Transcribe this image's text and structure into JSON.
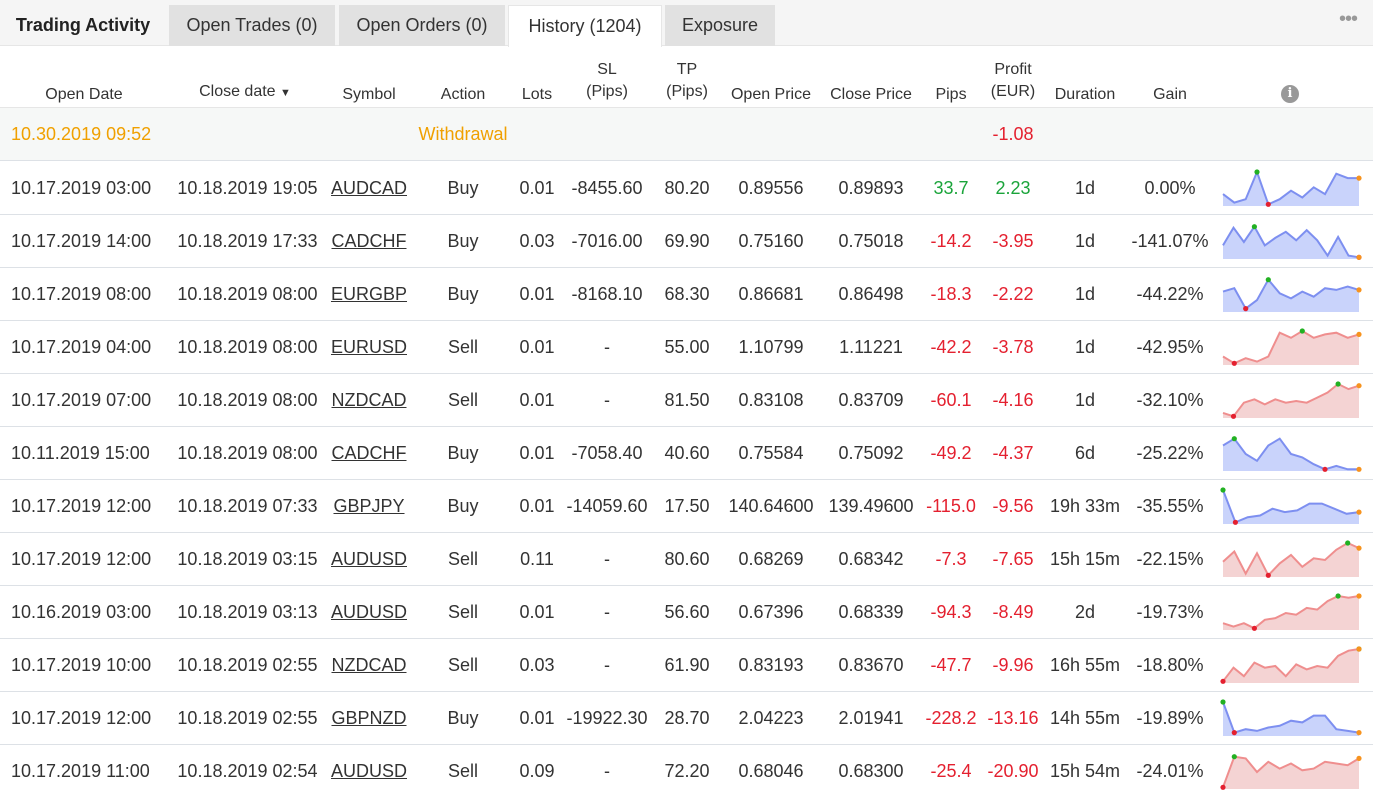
{
  "tabs": [
    {
      "label": "Trading Activity"
    },
    {
      "label": "Open Trades (0)"
    },
    {
      "label": "Open Orders (0)"
    },
    {
      "label": "History (1204)"
    },
    {
      "label": "Exposure"
    }
  ],
  "more_label": "•••",
  "columns": {
    "open_date": "Open Date",
    "close_date": "Close date",
    "sort_indicator": "▼",
    "symbol": "Symbol",
    "action": "Action",
    "lots": "Lots",
    "sl_1": "SL",
    "sl_2": "(Pips)",
    "tp_1": "TP",
    "tp_2": "(Pips)",
    "open_price": "Open Price",
    "close_price": "Close Price",
    "pips": "Pips",
    "profit_1": "Profit",
    "profit_2": "(EUR)",
    "duration": "Duration",
    "gain": "Gain",
    "info_icon": "i"
  },
  "withdrawal": {
    "open_date": "10.30.2019 09:52",
    "action": "Withdrawal",
    "profit": "-1.08"
  },
  "rows": [
    {
      "open_date": "10.17.2019 03:00",
      "close_date": "10.18.2019 19:05",
      "symbol": "AUDCAD",
      "action": "Buy",
      "lots": "0.01",
      "sl": "-8455.60",
      "tp": "80.20",
      "open_price": "0.89556",
      "close_price": "0.89893",
      "pips": "33.7",
      "profit": "2.23",
      "duration": "1d",
      "gain": "0.00%",
      "positive": true,
      "spark": {
        "color": "blue",
        "values": [
          0.35,
          0.1,
          0.2,
          1.0,
          0.05,
          0.2,
          0.45,
          0.25,
          0.55,
          0.35,
          0.95,
          0.82,
          0.82
        ]
      }
    },
    {
      "open_date": "10.17.2019 14:00",
      "close_date": "10.18.2019 17:33",
      "symbol": "CADCHF",
      "action": "Buy",
      "lots": "0.03",
      "sl": "-7016.00",
      "tp": "69.90",
      "open_price": "0.75160",
      "close_price": "0.75018",
      "pips": "-14.2",
      "profit": "-3.95",
      "duration": "1d",
      "gain": "-141.07%",
      "positive": false,
      "spark": {
        "color": "blue",
        "values": [
          0.4,
          0.92,
          0.5,
          0.95,
          0.4,
          0.62,
          0.8,
          0.55,
          0.85,
          0.55,
          0.1,
          0.65,
          0.1,
          0.05
        ]
      }
    },
    {
      "open_date": "10.17.2019 08:00",
      "close_date": "10.18.2019 08:00",
      "symbol": "EURGBP",
      "action": "Buy",
      "lots": "0.01",
      "sl": "-8168.10",
      "tp": "68.30",
      "open_price": "0.86681",
      "close_price": "0.86498",
      "pips": "-18.3",
      "profit": "-2.22",
      "duration": "1d",
      "gain": "-44.22%",
      "positive": false,
      "spark": {
        "color": "blue",
        "values": [
          0.6,
          0.7,
          0.1,
          0.35,
          0.95,
          0.55,
          0.4,
          0.6,
          0.45,
          0.7,
          0.65,
          0.75,
          0.65
        ]
      }
    },
    {
      "open_date": "10.17.2019 04:00",
      "close_date": "10.18.2019 08:00",
      "symbol": "EURUSD",
      "action": "Sell",
      "lots": "0.01",
      "sl": "-",
      "tp": "55.00",
      "open_price": "1.10799",
      "close_price": "1.11221",
      "pips": "-42.2",
      "profit": "-3.78",
      "duration": "1d",
      "gain": "-42.95%",
      "positive": false,
      "spark": {
        "color": "red",
        "values": [
          0.25,
          0.05,
          0.2,
          0.1,
          0.25,
          0.95,
          0.8,
          1.0,
          0.8,
          0.9,
          0.95,
          0.8,
          0.9
        ]
      }
    },
    {
      "open_date": "10.17.2019 07:00",
      "close_date": "10.18.2019 08:00",
      "symbol": "NZDCAD",
      "action": "Sell",
      "lots": "0.01",
      "sl": "-",
      "tp": "81.50",
      "open_price": "0.83108",
      "close_price": "0.83709",
      "pips": "-60.1",
      "profit": "-4.16",
      "duration": "1d",
      "gain": "-32.10%",
      "positive": false,
      "spark": {
        "color": "red",
        "values": [
          0.15,
          0.05,
          0.45,
          0.55,
          0.4,
          0.55,
          0.45,
          0.5,
          0.45,
          0.6,
          0.75,
          1.0,
          0.85,
          0.95
        ]
      }
    },
    {
      "open_date": "10.11.2019 15:00",
      "close_date": "10.18.2019 08:00",
      "symbol": "CADCHF",
      "action": "Buy",
      "lots": "0.01",
      "sl": "-7058.40",
      "tp": "40.60",
      "open_price": "0.75584",
      "close_price": "0.75092",
      "pips": "-49.2",
      "profit": "-4.37",
      "duration": "6d",
      "gain": "-25.22%",
      "positive": false,
      "spark": {
        "color": "blue",
        "values": [
          0.75,
          0.95,
          0.5,
          0.3,
          0.75,
          0.95,
          0.5,
          0.4,
          0.2,
          0.05,
          0.15,
          0.05,
          0.05
        ]
      }
    },
    {
      "open_date": "10.17.2019 12:00",
      "close_date": "10.18.2019 07:33",
      "symbol": "GBPJPY",
      "action": "Buy",
      "lots": "0.01",
      "sl": "-14059.60",
      "tp": "17.50",
      "open_price": "140.64600",
      "close_price": "139.49600",
      "pips": "-115.0",
      "profit": "-9.56",
      "duration": "19h 33m",
      "gain": "-35.55%",
      "positive": false,
      "spark": {
        "color": "blue",
        "values": [
          1.0,
          0.05,
          0.2,
          0.25,
          0.45,
          0.35,
          0.4,
          0.6,
          0.6,
          0.45,
          0.3,
          0.35
        ]
      }
    },
    {
      "open_date": "10.17.2019 12:00",
      "close_date": "10.18.2019 03:15",
      "symbol": "AUDUSD",
      "action": "Sell",
      "lots": "0.11",
      "sl": "-",
      "tp": "80.60",
      "open_price": "0.68269",
      "close_price": "0.68342",
      "pips": "-7.3",
      "profit": "-7.65",
      "duration": "15h 15m",
      "gain": "-22.15%",
      "positive": false,
      "spark": {
        "color": "red",
        "values": [
          0.45,
          0.75,
          0.1,
          0.7,
          0.05,
          0.4,
          0.65,
          0.3,
          0.55,
          0.5,
          0.8,
          1.0,
          0.85
        ]
      }
    },
    {
      "open_date": "10.16.2019 03:00",
      "close_date": "10.18.2019 03:13",
      "symbol": "AUDUSD",
      "action": "Sell",
      "lots": "0.01",
      "sl": "-",
      "tp": "56.60",
      "open_price": "0.67396",
      "close_price": "0.68339",
      "pips": "-94.3",
      "profit": "-8.49",
      "duration": "2d",
      "gain": "-19.73%",
      "positive": false,
      "spark": {
        "color": "red",
        "values": [
          0.2,
          0.1,
          0.2,
          0.05,
          0.3,
          0.35,
          0.5,
          0.45,
          0.65,
          0.6,
          0.85,
          1.0,
          0.95,
          1.0
        ]
      }
    },
    {
      "open_date": "10.17.2019 10:00",
      "close_date": "10.18.2019 02:55",
      "symbol": "NZDCAD",
      "action": "Sell",
      "lots": "0.03",
      "sl": "-",
      "tp": "61.90",
      "open_price": "0.83193",
      "close_price": "0.83670",
      "pips": "-47.7",
      "profit": "-9.96",
      "duration": "16h 55m",
      "gain": "-18.80%",
      "positive": false,
      "spark": {
        "color": "red",
        "values": [
          0.05,
          0.45,
          0.2,
          0.6,
          0.45,
          0.5,
          0.2,
          0.55,
          0.4,
          0.5,
          0.45,
          0.8,
          0.95,
          1.0
        ]
      }
    },
    {
      "open_date": "10.17.2019 12:00",
      "close_date": "10.18.2019 02:55",
      "symbol": "GBPNZD",
      "action": "Buy",
      "lots": "0.01",
      "sl": "-19922.30",
      "tp": "28.70",
      "open_price": "2.04223",
      "close_price": "2.01941",
      "pips": "-228.2",
      "profit": "-13.16",
      "duration": "14h 55m",
      "gain": "-19.89%",
      "positive": false,
      "spark": {
        "color": "blue",
        "values": [
          1.0,
          0.1,
          0.2,
          0.15,
          0.25,
          0.3,
          0.45,
          0.4,
          0.6,
          0.6,
          0.2,
          0.15,
          0.1
        ]
      }
    },
    {
      "open_date": "10.17.2019 11:00",
      "close_date": "10.18.2019 02:54",
      "symbol": "AUDUSD",
      "action": "Sell",
      "lots": "0.09",
      "sl": "-",
      "tp": "72.20",
      "open_price": "0.68046",
      "close_price": "0.68300",
      "pips": "-25.4",
      "profit": "-20.90",
      "duration": "15h 54m",
      "gain": "-24.01%",
      "positive": false,
      "spark": {
        "color": "red",
        "values": [
          0.05,
          0.95,
          0.9,
          0.5,
          0.8,
          0.6,
          0.75,
          0.55,
          0.6,
          0.8,
          0.75,
          0.7,
          0.9
        ]
      }
    }
  ],
  "colors": {
    "positive": "#1aa43a",
    "negative": "#e4202f",
    "withdrawal": "#f0a000",
    "spark_blue_line": "#7d8ff0",
    "spark_blue_fill": "#c9d3fb",
    "spark_red_line": "#ef8e8e",
    "spark_red_fill": "#f4d3d3",
    "marker_max": "#22b122",
    "marker_min": "#e4202f",
    "marker_last": "#f7931e"
  }
}
